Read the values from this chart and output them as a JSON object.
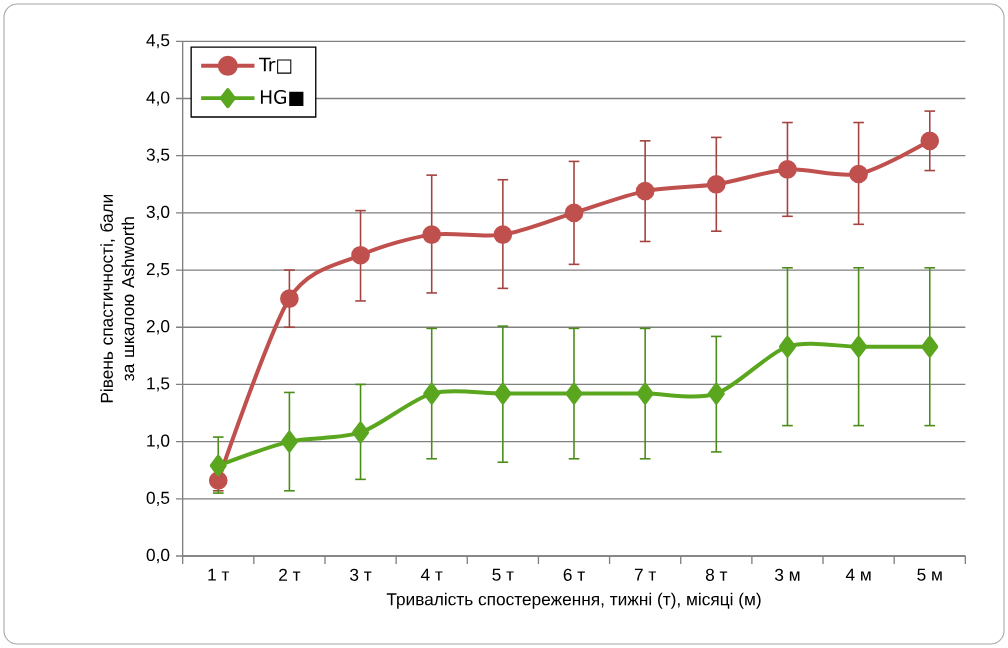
{
  "chart_data": {
    "type": "line",
    "xlabel": "Тривалість спостереження, тижні (т), місяці (м)",
    "ylabel": "Рівень спастичності, бали за шкалою Ashworth",
    "categories": [
      "1 т",
      "2 т",
      "3 т",
      "4 т",
      "5 т",
      "6 т",
      "7 т",
      "8 т",
      "3 м",
      "4 м",
      "5 м"
    ],
    "series": [
      {
        "name": "Tr□",
        "color": "#c0504d",
        "marker": "circle",
        "values": [
          0.66,
          2.25,
          2.63,
          2.81,
          2.81,
          3.0,
          3.19,
          3.25,
          3.38,
          3.34,
          3.63
        ],
        "errors": [
          [
            0.57,
            0.75
          ],
          [
            2.0,
            2.5
          ],
          [
            2.23,
            3.02
          ],
          [
            2.3,
            3.33
          ],
          [
            2.34,
            3.29
          ],
          [
            2.55,
            3.45
          ],
          [
            2.75,
            3.63
          ],
          [
            2.84,
            3.66
          ],
          [
            2.97,
            3.79
          ],
          [
            2.9,
            3.79
          ],
          [
            3.37,
            3.89
          ]
        ]
      },
      {
        "name": "HG■",
        "color": "#5aa61e",
        "marker": "diamond",
        "values": [
          0.79,
          1.0,
          1.08,
          1.42,
          1.42,
          1.42,
          1.42,
          1.42,
          1.83,
          1.83,
          1.83
        ],
        "errors": [
          [
            0.55,
            1.04
          ],
          [
            0.57,
            1.43
          ],
          [
            0.67,
            1.5
          ],
          [
            0.85,
            1.99
          ],
          [
            0.82,
            2.01
          ],
          [
            0.85,
            1.99
          ],
          [
            0.85,
            1.99
          ],
          [
            0.91,
            1.92
          ],
          [
            1.14,
            2.52
          ],
          [
            1.14,
            2.52
          ],
          [
            1.14,
            2.52
          ]
        ]
      }
    ],
    "ylim": [
      0,
      4.5
    ],
    "yticks": [
      {
        "value": 0,
        "label": "0,0"
      },
      {
        "value": 0.5,
        "label": "0,5"
      },
      {
        "value": 1,
        "label": "1,0"
      },
      {
        "value": 1.5,
        "label": "1,5"
      },
      {
        "value": 2,
        "label": "2,0"
      },
      {
        "value": 2.5,
        "label": "2,5"
      },
      {
        "value": 3,
        "label": "3,0"
      },
      {
        "value": 3.5,
        "label": "3,5"
      },
      {
        "value": 4,
        "label": "4,0"
      },
      {
        "value": 4.5,
        "label": "4,5"
      }
    ],
    "grid": "y",
    "legend": "top left",
    "line_style": "solid"
  }
}
